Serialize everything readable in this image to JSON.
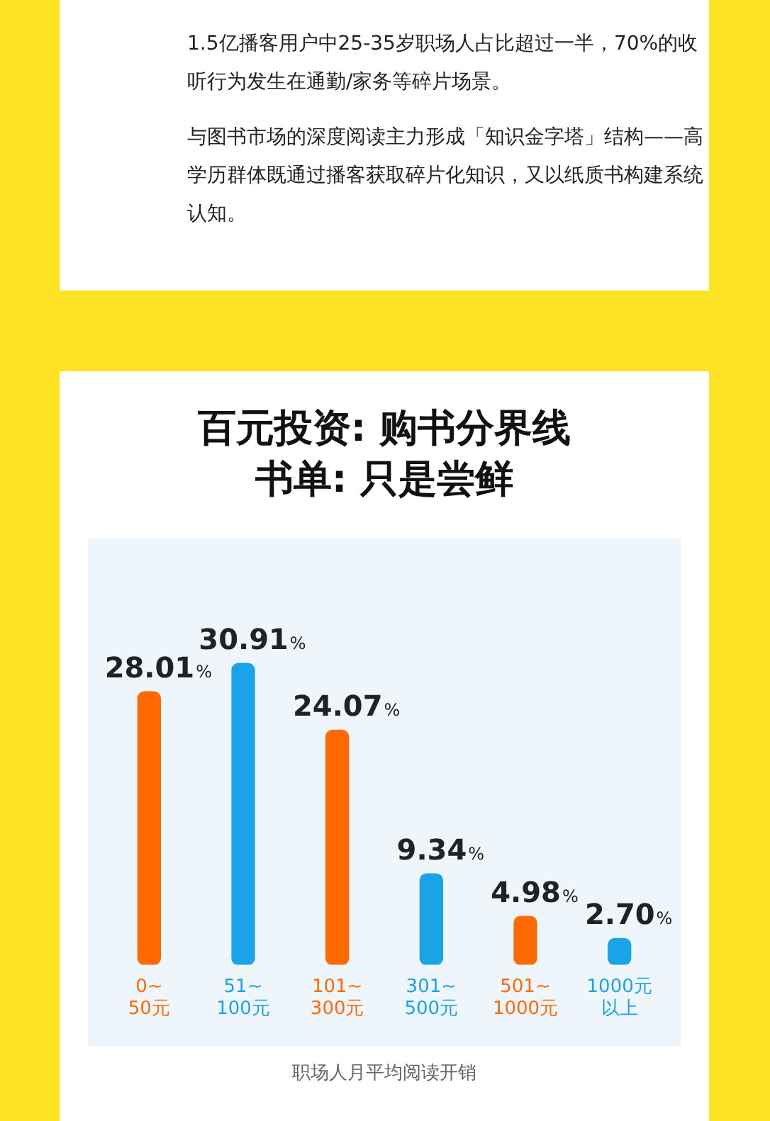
{
  "chart_data": {
    "type": "bar",
    "title": "百元投资: 购书分界线",
    "subtitle": "书单: 只是尝鲜",
    "xlabel": "职场人月平均阅读开销",
    "annotations": [
      "1.5亿播客用户中25-35岁职场人占比超过一半，70%的收听行为发生在通勤/家务等碎片场景。",
      "与图书市场的深度阅读主力形成「知识金字塔」结构——高学历群体既通过播客获取碎片化知识，又以纸质书构建系统认知。"
    ],
    "categories": [
      "0~50元",
      "51~100元",
      "101~300元",
      "301~500元",
      "501~1000元",
      "1000元以上"
    ],
    "values": [
      28.01,
      30.91,
      24.07,
      9.34,
      4.98,
      2.7
    ],
    "colors": [
      "#ff6a00",
      "#1aa3e8",
      "#ff6a00",
      "#1aa3e8",
      "#ff6a00",
      "#1aa3e8"
    ],
    "value_labels": [
      "28.01%",
      "30.91%",
      "24.07%",
      "9.34%",
      "4.98%",
      "2.70%"
    ],
    "grid": false,
    "legend": false
  }
}
